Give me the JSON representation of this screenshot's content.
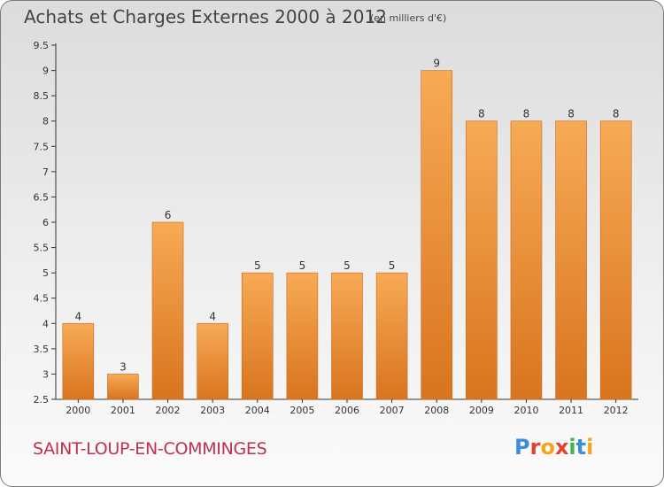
{
  "header": {
    "title": "Achats et Charges Externes 2000 à 2012",
    "unit": "(en milliers d'€)"
  },
  "footer": {
    "commune": "SAINT-LOUP-EN-COMMINGES",
    "logo_text": "Proxiti",
    "logo_colors": [
      "#3a8fd8",
      "#e53f2e",
      "#f2a51f",
      "#e53f2e",
      "#47b34a",
      "#3a8fd8",
      "#f2a51f"
    ]
  },
  "colors": {
    "bar_light": "#f7aa55",
    "bar_dark": "#d9741f",
    "bar_edge": "#c96a1c"
  },
  "chart_data": {
    "type": "bar",
    "title": "Achats et Charges Externes 2000 à 2012",
    "subtitle": "(en milliers d'€)",
    "categories": [
      "2000",
      "2001",
      "2002",
      "2003",
      "2004",
      "2005",
      "2006",
      "2007",
      "2008",
      "2009",
      "2010",
      "2011",
      "2012"
    ],
    "values": [
      4,
      3,
      6,
      4,
      5,
      5,
      5,
      5,
      9,
      8,
      8,
      8,
      8
    ],
    "labels": [
      "4",
      "3",
      "6",
      "4",
      "5",
      "5",
      "5",
      "5",
      "9",
      "8",
      "8",
      "8",
      "8"
    ],
    "yticks": [
      "2.5",
      "3",
      "3.5",
      "4",
      "4.5",
      "5",
      "5.5",
      "6",
      "6.5",
      "7",
      "7.5",
      "8",
      "8.5",
      "9",
      "9.5"
    ],
    "ylim": [
      2.5,
      9.5
    ],
    "grid": false,
    "xlabel": "",
    "ylabel": ""
  }
}
